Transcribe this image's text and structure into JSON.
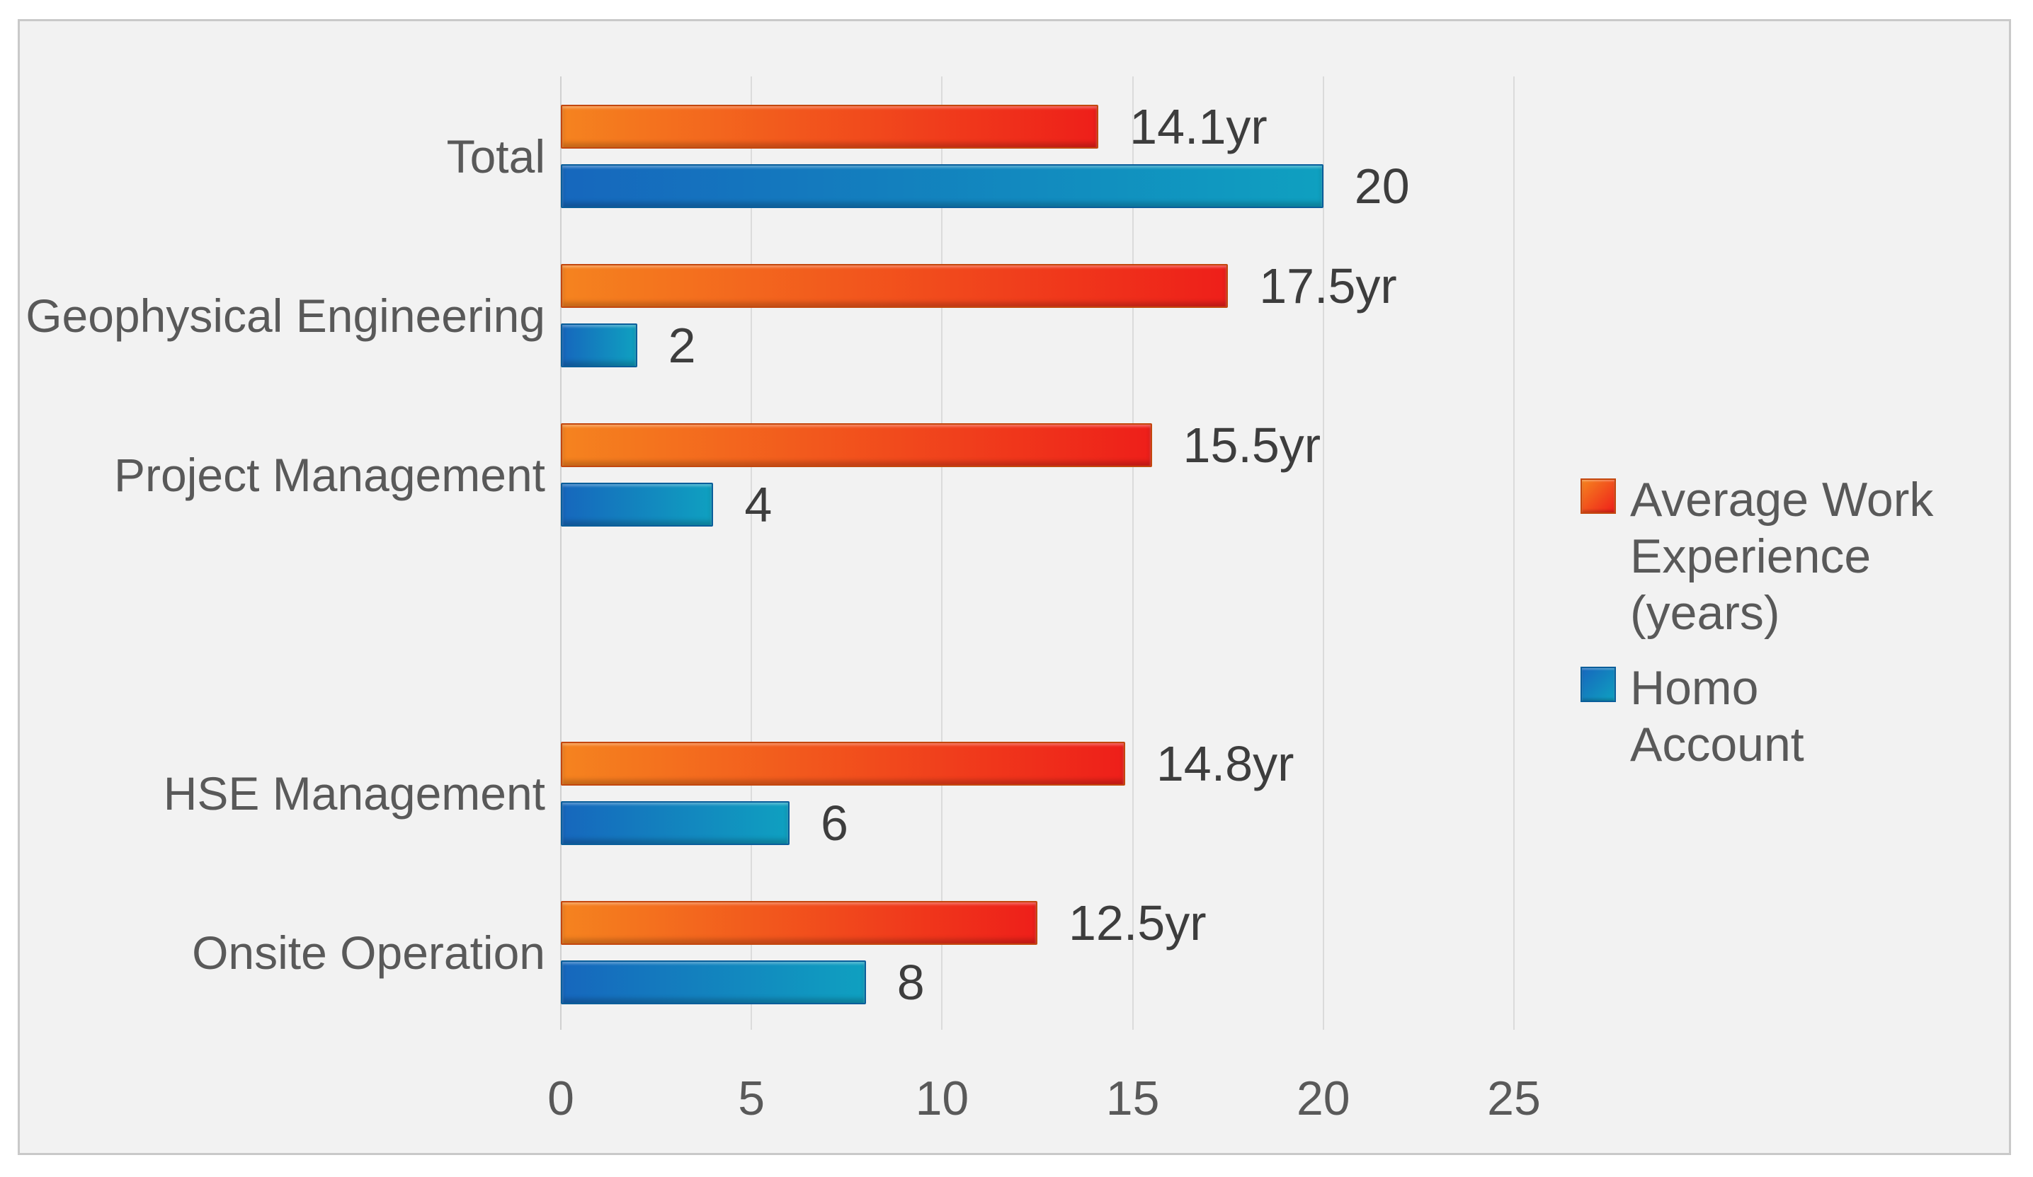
{
  "chart_data": {
    "type": "bar",
    "orientation": "horizontal",
    "title": "",
    "xlabel": "",
    "ylabel": "",
    "categories": [
      "Total",
      "Geophysical Engineering",
      "Project Management",
      "",
      "HSE Management",
      "Onsite Operation"
    ],
    "series": [
      {
        "name": "Average Work Experience (years)",
        "values": [
          14.1,
          17.5,
          15.5,
          null,
          14.8,
          12.5
        ],
        "data_labels": [
          "14.1yr",
          "17.5yr",
          "15.5yr",
          "",
          "14.8yr",
          "12.5yr"
        ],
        "color_start": "#f5831f",
        "color_end": "#ee1f1a",
        "border_color": "#c3470e"
      },
      {
        "name": "Homo Account",
        "values": [
          20,
          2,
          4,
          null,
          6,
          8
        ],
        "data_labels": [
          "20",
          "2",
          "4",
          "",
          "6",
          "8"
        ],
        "color_start": "#1667bd",
        "color_end": "#0fa0c0",
        "border_color": "#0a5e9a"
      }
    ],
    "xlim": [
      0,
      25
    ],
    "xticks": [
      "0",
      "5",
      "10",
      "15",
      "20",
      "25"
    ],
    "grid": "vertical gridlines on",
    "legend_position": "right middle"
  },
  "legend": {
    "entries": [
      {
        "label": "Average Work\nExperience (years)",
        "swatch_color_start": "#f5831f",
        "swatch_color_end": "#ee1f1a",
        "swatch_border": "#c3470e"
      },
      {
        "label": "Homo\nAccount",
        "swatch_color_start": "#1667bd",
        "swatch_color_end": "#0fa0c0",
        "swatch_border": "#0a5e9a"
      }
    ]
  },
  "colors": {
    "page_background": "#ffffff",
    "panel_background": "#f2f2f2",
    "panel_border": "#c9c9c9",
    "gridline": "#dbdbdb",
    "category_text": "#595959",
    "tick_text": "#595959",
    "legend_text": "#595959",
    "data_label_text": "#3d3d3d"
  }
}
